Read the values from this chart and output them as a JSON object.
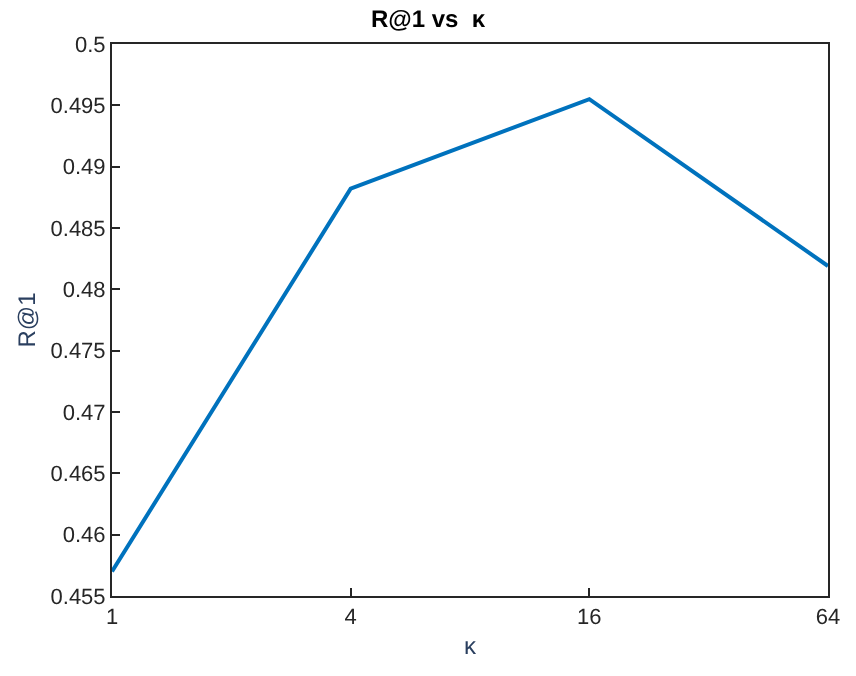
{
  "chart_data": {
    "type": "line",
    "title": "R@1 vs  κ",
    "xlabel": "κ",
    "ylabel": "R@1",
    "x": [
      1,
      4,
      16,
      64
    ],
    "series": [
      {
        "color": "#0072bd",
        "values": [
          0.457,
          0.4882,
          0.4955,
          0.4819
        ]
      }
    ],
    "xlim": [
      1,
      64
    ],
    "xticks": [
      1,
      4,
      16,
      64
    ],
    "log": "x",
    "ylim": [
      0.455,
      0.5
    ],
    "yticks": [
      {
        "value": 0.455,
        "label": "0.455"
      },
      {
        "value": 0.46,
        "label": "0.46"
      },
      {
        "value": 0.465,
        "label": "0.465"
      },
      {
        "value": 0.47,
        "label": "0.47"
      },
      {
        "value": 0.475,
        "label": "0.475"
      },
      {
        "value": 0.48,
        "label": "0.48"
      },
      {
        "value": 0.485,
        "label": "0.485"
      },
      {
        "value": 0.49,
        "label": "0.49"
      },
      {
        "value": 0.495,
        "label": "0.495"
      },
      {
        "value": 0.5,
        "label": "0.5"
      }
    ],
    "marker": "none",
    "line_style": "solid"
  }
}
